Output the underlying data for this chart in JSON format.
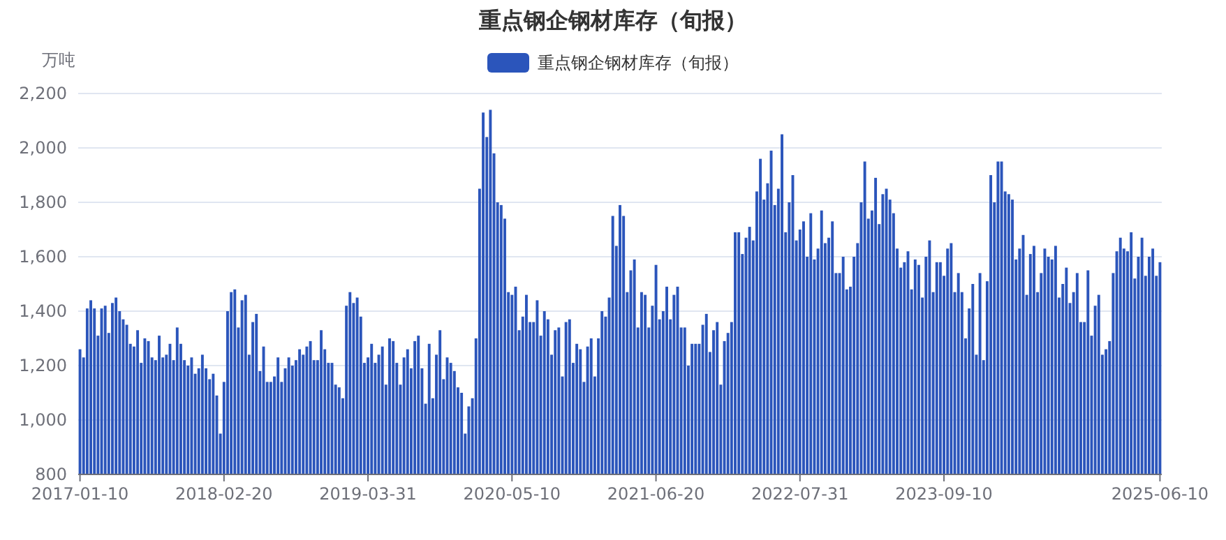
{
  "chart_data": {
    "type": "bar",
    "title": "重点钢企钢材库存（旬报）",
    "ylabel": "万吨",
    "legend": "top",
    "grid": "y",
    "ylim": [
      800,
      2200
    ],
    "yticks": [
      {
        "value": 800,
        "label": "800"
      },
      {
        "value": 1000,
        "label": "1,000"
      },
      {
        "value": 1200,
        "label": "1,200"
      },
      {
        "value": 1400,
        "label": "1,400"
      },
      {
        "value": 1600,
        "label": "1,600"
      },
      {
        "value": 1800,
        "label": "1,800"
      },
      {
        "value": 2000,
        "label": "2,000"
      },
      {
        "value": 2200,
        "label": "2,200"
      }
    ],
    "categories": [
      "2017-01-10",
      null,
      null,
      null,
      null,
      null,
      null,
      null,
      null,
      null,
      null,
      null,
      null,
      null,
      null,
      null,
      null,
      null,
      null,
      null,
      null,
      null,
      null,
      null,
      null,
      null,
      null,
      null,
      null,
      null,
      null,
      null,
      null,
      null,
      null,
      null,
      null,
      null,
      null,
      null,
      "2018-02-20",
      null,
      null,
      null,
      null,
      null,
      null,
      null,
      null,
      null,
      null,
      null,
      null,
      null,
      null,
      null,
      null,
      null,
      null,
      null,
      null,
      null,
      null,
      null,
      null,
      null,
      null,
      null,
      null,
      null,
      null,
      null,
      null,
      null,
      null,
      null,
      null,
      null,
      null,
      null,
      "2019-03-31",
      null,
      null,
      null,
      null,
      null,
      null,
      null,
      null,
      null,
      null,
      null,
      null,
      null,
      null,
      null,
      null,
      null,
      null,
      null,
      null,
      null,
      null,
      null,
      null,
      null,
      null,
      null,
      null,
      null,
      null,
      null,
      null,
      null,
      null,
      null,
      null,
      null,
      null,
      null,
      "2020-05-10",
      null,
      null,
      null,
      null,
      null,
      null,
      null,
      null,
      null,
      null,
      null,
      null,
      null,
      null,
      null,
      null,
      null,
      null,
      null,
      null,
      null,
      null,
      null,
      null,
      null,
      null,
      null,
      null,
      null,
      null,
      null,
      null,
      null,
      null,
      null,
      null,
      null,
      null,
      null,
      "2021-06-20",
      null,
      null,
      null,
      null,
      null,
      null,
      null,
      null,
      null,
      null,
      null,
      null,
      null,
      null,
      null,
      null,
      null,
      null,
      null,
      null,
      null,
      null,
      null,
      null,
      null,
      null,
      null,
      null,
      null,
      null,
      null,
      null,
      null,
      null,
      null,
      null,
      null,
      null,
      null,
      "2022-07-31",
      null,
      null,
      null,
      null,
      null,
      null,
      null,
      null,
      null,
      null,
      null,
      null,
      null,
      null,
      null,
      null,
      null,
      null,
      null,
      null,
      null,
      null,
      null,
      null,
      null,
      null,
      null,
      null,
      null,
      null,
      null,
      null,
      null,
      null,
      null,
      null,
      null,
      null,
      null,
      "2023-09-10",
      null,
      null,
      null,
      null,
      null,
      null,
      null,
      null,
      null,
      null,
      null,
      null,
      null,
      null,
      null,
      null,
      null,
      null,
      null,
      null,
      null,
      null,
      null,
      null,
      null,
      null,
      null,
      null,
      null,
      null,
      null,
      null,
      null,
      null,
      null,
      null,
      null,
      null,
      null,
      null,
      null,
      null,
      null,
      null,
      null,
      null,
      null,
      null,
      null,
      null,
      null,
      null,
      null,
      null,
      null,
      null,
      null,
      null,
      null,
      "2025-06-10"
    ],
    "series": [
      {
        "name": "重点钢企钢材库存（旬报）",
        "color": "#2b55bb",
        "values": [
          1260,
          1230,
          1410,
          1440,
          1410,
          1310,
          1410,
          1420,
          1320,
          1430,
          1450,
          1400,
          1370,
          1350,
          1280,
          1270,
          1330,
          1210,
          1300,
          1290,
          1230,
          1220,
          1310,
          1230,
          1240,
          1280,
          1220,
          1340,
          1280,
          1220,
          1200,
          1230,
          1170,
          1190,
          1240,
          1190,
          1150,
          1170,
          1090,
          950,
          1140,
          1400,
          1470,
          1480,
          1340,
          1440,
          1460,
          1240,
          1360,
          1390,
          1180,
          1270,
          1140,
          1140,
          1160,
          1230,
          1140,
          1190,
          1230,
          1200,
          1220,
          1260,
          1240,
          1270,
          1290,
          1220,
          1220,
          1330,
          1260,
          1210,
          1210,
          1130,
          1120,
          1080,
          1420,
          1470,
          1430,
          1450,
          1380,
          1210,
          1230,
          1280,
          1210,
          1240,
          1270,
          1130,
          1300,
          1290,
          1210,
          1130,
          1230,
          1260,
          1190,
          1290,
          1310,
          1190,
          1060,
          1280,
          1080,
          1240,
          1330,
          1150,
          1230,
          1210,
          1180,
          1120,
          1100,
          950,
          1050,
          1080,
          1300,
          1850,
          2130,
          2040,
          2140,
          1980,
          1800,
          1790,
          1740,
          1470,
          1460,
          1490,
          1330,
          1380,
          1460,
          1360,
          1360,
          1440,
          1310,
          1400,
          1370,
          1240,
          1330,
          1340,
          1160,
          1360,
          1370,
          1210,
          1280,
          1260,
          1140,
          1270,
          1300,
          1160,
          1300,
          1400,
          1380,
          1450,
          1750,
          1640,
          1790,
          1750,
          1470,
          1550,
          1590,
          1340,
          1470,
          1460,
          1340,
          1420,
          1570,
          1370,
          1400,
          1490,
          1370,
          1460,
          1490,
          1340,
          1340,
          1200,
          1280,
          1280,
          1280,
          1350,
          1390,
          1250,
          1330,
          1360,
          1130,
          1290,
          1320,
          1360,
          1690,
          1690,
          1610,
          1670,
          1710,
          1660,
          1840,
          1960,
          1810,
          1870,
          1990,
          1790,
          1850,
          2050,
          1690,
          1800,
          1900,
          1660,
          1700,
          1730,
          1600,
          1760,
          1590,
          1630,
          1770,
          1650,
          1670,
          1730,
          1540,
          1540,
          1600,
          1480,
          1490,
          1600,
          1650,
          1800,
          1950,
          1740,
          1770,
          1890,
          1720,
          1830,
          1850,
          1810,
          1760,
          1630,
          1560,
          1580,
          1620,
          1480,
          1590,
          1570,
          1450,
          1600,
          1660,
          1470,
          1580,
          1580,
          1530,
          1630,
          1650,
          1470,
          1540,
          1470,
          1300,
          1410,
          1500,
          1240,
          1540,
          1220,
          1510,
          1900,
          1800,
          1950,
          1950,
          1840,
          1830,
          1810,
          1590,
          1630,
          1680,
          1460,
          1610,
          1640,
          1470,
          1540,
          1630,
          1600,
          1590,
          1640,
          1450,
          1500,
          1560,
          1430,
          1470,
          1540,
          1360,
          1360,
          1550,
          1310,
          1420,
          1460,
          1240,
          1260,
          1290,
          1540,
          1620,
          1670,
          1630,
          1620,
          1690,
          1520,
          1600,
          1670,
          1530,
          1600,
          1630,
          1530,
          1580
        ]
      }
    ]
  }
}
